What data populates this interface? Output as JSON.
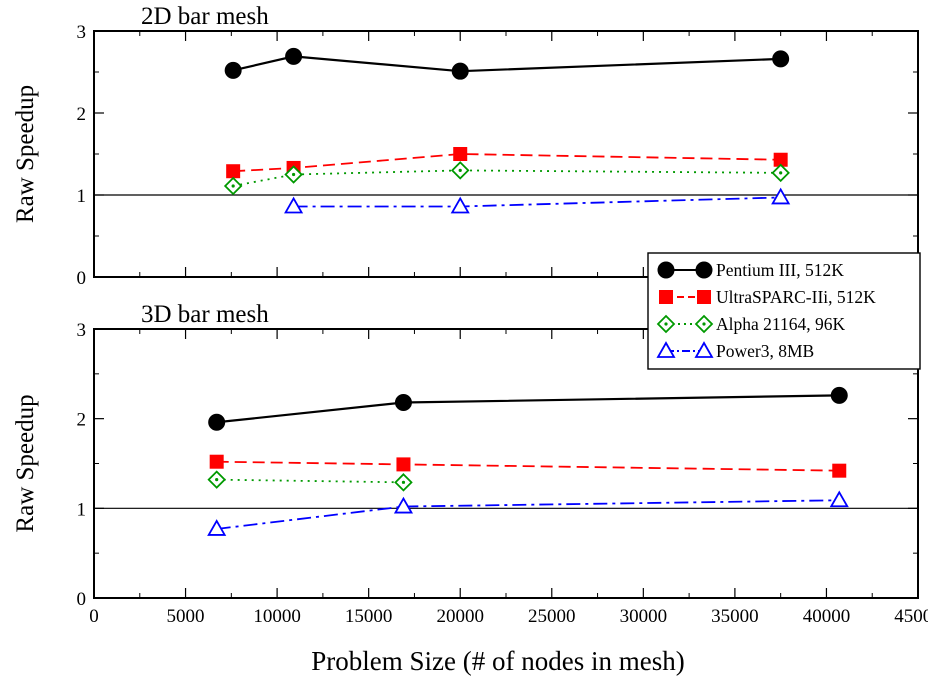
{
  "xlabel": "Problem Size (# of nodes in mesh)",
  "xticks": [
    0,
    5000,
    10000,
    15000,
    20000,
    25000,
    30000,
    35000,
    40000,
    45000
  ],
  "legend": {
    "position": "right",
    "entries": [
      {
        "label": "Pentium III, 512K",
        "color": "#000000",
        "marker": "filled-circle",
        "dash": "solid"
      },
      {
        "label": "UltraSPARC-IIi, 512K",
        "color": "#ff0000",
        "marker": "filled-square",
        "dash": "dashed"
      },
      {
        "label": "Alpha 21164, 96K",
        "color": "#009900",
        "marker": "dotted-diamond",
        "dash": "dotted"
      },
      {
        "label": "Power3, 8MB",
        "color": "#0000ff",
        "marker": "open-triangle",
        "dash": "dash-dot"
      }
    ]
  },
  "chart_data": [
    {
      "type": "line",
      "title": "2D bar mesh",
      "xlabel": "Problem Size (# of nodes in mesh)",
      "ylabel": "Raw Speedup",
      "xlim": [
        0,
        45000
      ],
      "ylim": [
        0,
        3
      ],
      "yticks": [
        0,
        1,
        2,
        3
      ],
      "reference_line_y": 1,
      "grid": false,
      "series": [
        {
          "name": "Pentium III, 512K",
          "x": [
            7600,
            10900,
            20000,
            37500
          ],
          "y": [
            2.52,
            2.69,
            2.51,
            2.66
          ]
        },
        {
          "name": "UltraSPARC-IIi, 512K",
          "x": [
            7600,
            10900,
            20000,
            37500
          ],
          "y": [
            1.29,
            1.33,
            1.5,
            1.43
          ]
        },
        {
          "name": "Alpha 21164, 96K",
          "x": [
            7600,
            10900,
            20000,
            37500
          ],
          "y": [
            1.11,
            1.25,
            1.3,
            1.27
          ]
        },
        {
          "name": "Power3, 8MB",
          "x": [
            10900,
            20000,
            37500
          ],
          "y": [
            0.86,
            0.86,
            0.97
          ]
        }
      ]
    },
    {
      "type": "line",
      "title": "3D bar mesh",
      "xlabel": "Problem Size (# of nodes in mesh)",
      "ylabel": "Raw Speedup",
      "xlim": [
        0,
        45000
      ],
      "ylim": [
        0,
        3
      ],
      "yticks": [
        0,
        1,
        2,
        3
      ],
      "reference_line_y": 1,
      "grid": false,
      "series": [
        {
          "name": "Pentium III, 512K",
          "x": [
            6700,
            16900,
            40700
          ],
          "y": [
            1.96,
            2.18,
            2.26
          ]
        },
        {
          "name": "UltraSPARC-IIi, 512K",
          "x": [
            6700,
            16900,
            40700
          ],
          "y": [
            1.52,
            1.49,
            1.42
          ]
        },
        {
          "name": "Alpha 21164, 96K",
          "x": [
            6700,
            16900
          ],
          "y": [
            1.32,
            1.29
          ]
        },
        {
          "name": "Power3, 8MB",
          "x": [
            6700,
            16900,
            40700
          ],
          "y": [
            0.77,
            1.02,
            1.09
          ]
        }
      ]
    }
  ]
}
